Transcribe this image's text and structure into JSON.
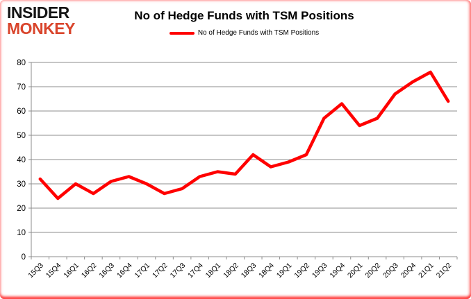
{
  "header": {
    "logo_line1": "INSIDER",
    "logo_line2": "MONKEY",
    "title": "No of Hedge Funds with TSM Positions"
  },
  "legend": {
    "label": "No of Hedge Funds with TSM Positions"
  },
  "colors": {
    "line": "#ff0000",
    "grid": "#8c8c8c",
    "axis_text": "#000000",
    "logo_black": "#141414",
    "logo_red": "#d9452c",
    "border_glow": "#ff0000",
    "background": "#ffffff"
  },
  "chart_data": {
    "type": "line",
    "title": "No of Hedge Funds with TSM Positions",
    "categories": [
      "15Q3",
      "15Q4",
      "16Q1",
      "16Q2",
      "16Q3",
      "16Q4",
      "17Q1",
      "17Q2",
      "17Q3",
      "17Q4",
      "18Q1",
      "18Q2",
      "18Q3",
      "18Q4",
      "19Q1",
      "19Q2",
      "19Q3",
      "19Q4",
      "20Q1",
      "20Q2",
      "20Q3",
      "20Q4",
      "21Q1",
      "21Q2"
    ],
    "series": [
      {
        "name": "No of Hedge Funds with TSM Positions",
        "color": "#ff0000",
        "values": [
          32,
          24,
          30,
          26,
          31,
          33,
          30,
          26,
          28,
          33,
          35,
          34,
          42,
          37,
          39,
          42,
          57,
          63,
          54,
          57,
          67,
          72,
          76,
          64
        ]
      }
    ],
    "xlabel": "",
    "ylabel": "",
    "ylim": [
      0,
      80
    ],
    "yticks": [
      0,
      10,
      20,
      30,
      40,
      50,
      60,
      70,
      80
    ],
    "grid": true,
    "legend_position": "top-center"
  }
}
